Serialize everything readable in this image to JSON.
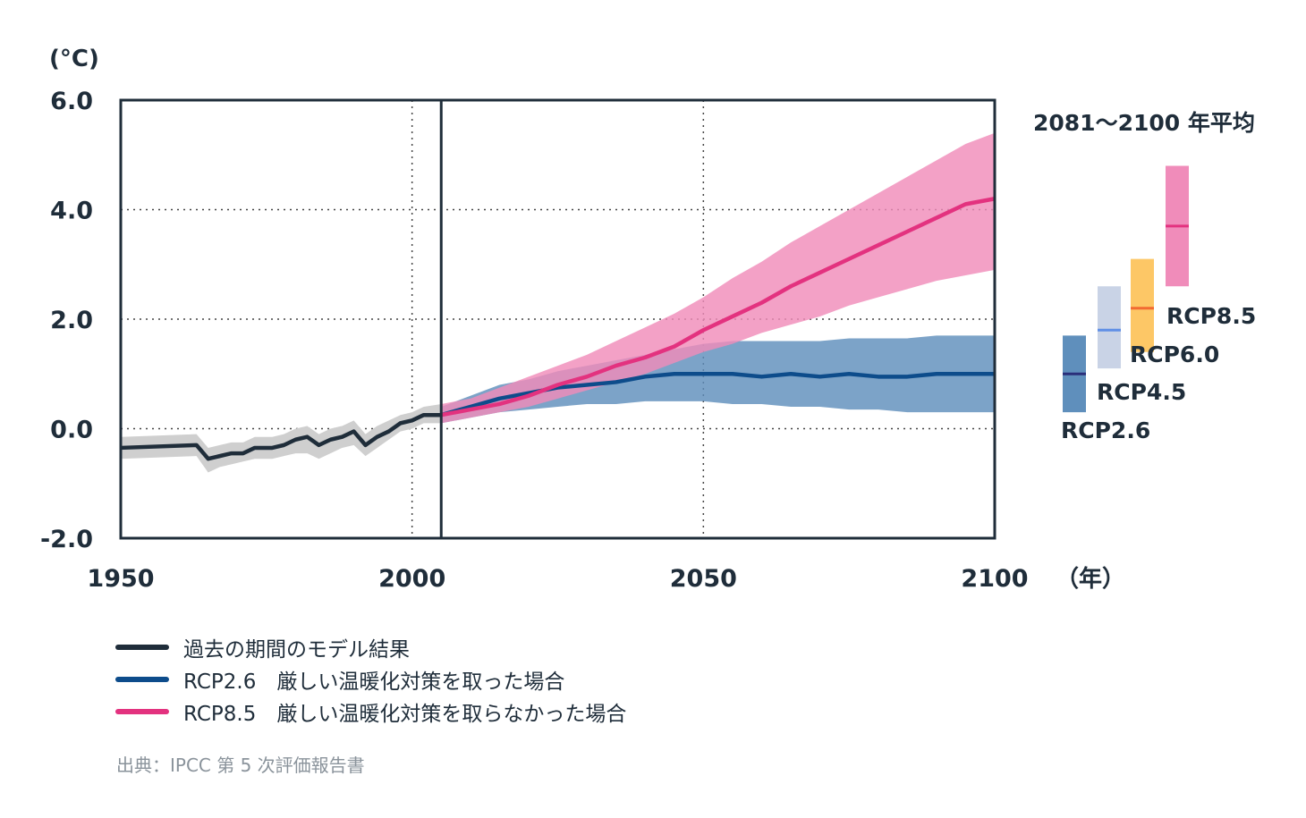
{
  "chart_data": {
    "type": "line",
    "ylabel": "(°C)",
    "xlabel": "（年）",
    "xlim": [
      1950,
      2100
    ],
    "ylim": [
      -2.0,
      6.0
    ],
    "x_ticks": [
      "1950",
      "2000",
      "2050",
      "2100"
    ],
    "y_ticks": [
      "6.0",
      "4.0",
      "2.0",
      "0.0",
      "-2.0"
    ],
    "grid": "dotted",
    "projection_start": 2005,
    "series": [
      {
        "name": "過去の期間のモデル結果",
        "color": "#1f2d3a",
        "band_color": "#cfcfcf",
        "x": [
          1950,
          1963,
          1965,
          1967,
          1969,
          1971,
          1973,
          1976,
          1978,
          1980,
          1982,
          1984,
          1986,
          1988,
          1990,
          1992,
          1994,
          1996,
          1998,
          2000,
          2002,
          2005
        ],
        "y": [
          -0.35,
          -0.3,
          -0.55,
          -0.5,
          -0.45,
          -0.45,
          -0.35,
          -0.35,
          -0.3,
          -0.2,
          -0.15,
          -0.3,
          -0.2,
          -0.15,
          -0.05,
          -0.3,
          -0.15,
          -0.05,
          0.1,
          0.15,
          0.25,
          0.25
        ],
        "band_low": [
          -0.55,
          -0.5,
          -0.8,
          -0.7,
          -0.65,
          -0.6,
          -0.55,
          -0.55,
          -0.5,
          -0.45,
          -0.45,
          -0.55,
          -0.45,
          -0.35,
          -0.3,
          -0.5,
          -0.35,
          -0.2,
          -0.05,
          0.0,
          0.1,
          0.1
        ],
        "band_high": [
          -0.15,
          -0.1,
          -0.35,
          -0.3,
          -0.25,
          -0.25,
          -0.15,
          -0.15,
          -0.1,
          0.0,
          0.05,
          -0.1,
          0.0,
          0.05,
          0.15,
          -0.1,
          0.05,
          0.15,
          0.25,
          0.3,
          0.4,
          0.45
        ]
      },
      {
        "name": "RCP2.6　厳しい温暖化対策を取った場合",
        "color": "#0d4c8b",
        "band_color": "#5f8fbc",
        "x": [
          2005,
          2010,
          2015,
          2020,
          2025,
          2030,
          2035,
          2040,
          2045,
          2050,
          2055,
          2060,
          2065,
          2070,
          2075,
          2080,
          2085,
          2090,
          2095,
          2100
        ],
        "y": [
          0.25,
          0.4,
          0.55,
          0.65,
          0.75,
          0.8,
          0.85,
          0.95,
          1.0,
          1.0,
          1.0,
          0.95,
          1.0,
          0.95,
          1.0,
          0.95,
          0.95,
          1.0,
          1.0,
          1.0
        ],
        "band_low": [
          0.1,
          0.2,
          0.3,
          0.35,
          0.4,
          0.45,
          0.45,
          0.5,
          0.5,
          0.5,
          0.45,
          0.45,
          0.4,
          0.4,
          0.35,
          0.35,
          0.3,
          0.3,
          0.3,
          0.3
        ],
        "band_high": [
          0.4,
          0.6,
          0.8,
          0.9,
          1.05,
          1.15,
          1.25,
          1.35,
          1.45,
          1.55,
          1.6,
          1.6,
          1.6,
          1.6,
          1.65,
          1.65,
          1.65,
          1.7,
          1.7,
          1.7
        ]
      },
      {
        "name": "RCP8.5　厳しい温暖化対策を取らなかった場合",
        "color": "#e3327f",
        "band_color": "#f08cba",
        "x": [
          2005,
          2010,
          2015,
          2020,
          2025,
          2030,
          2035,
          2040,
          2045,
          2050,
          2055,
          2060,
          2065,
          2070,
          2075,
          2080,
          2085,
          2090,
          2095,
          2100
        ],
        "y": [
          0.25,
          0.35,
          0.45,
          0.6,
          0.8,
          0.95,
          1.15,
          1.3,
          1.5,
          1.8,
          2.05,
          2.3,
          2.6,
          2.85,
          3.1,
          3.35,
          3.6,
          3.85,
          4.1,
          4.2
        ],
        "band_low": [
          0.1,
          0.2,
          0.3,
          0.4,
          0.55,
          0.7,
          0.85,
          1.0,
          1.2,
          1.4,
          1.55,
          1.75,
          1.9,
          2.05,
          2.25,
          2.4,
          2.55,
          2.7,
          2.8,
          2.9
        ],
        "band_high": [
          0.45,
          0.55,
          0.75,
          0.95,
          1.15,
          1.35,
          1.6,
          1.85,
          2.1,
          2.4,
          2.75,
          3.05,
          3.4,
          3.7,
          4.0,
          4.3,
          4.6,
          4.9,
          5.2,
          5.4
        ]
      }
    ]
  },
  "period_average": {
    "title": "2081〜2100 年平均",
    "bars": [
      {
        "name": "RCP2.6",
        "low": 0.3,
        "high": 1.7,
        "mean": 1.0,
        "color": "#5f8fbc",
        "mean_color": "#2a2f7a"
      },
      {
        "name": "RCP4.5",
        "low": 1.1,
        "high": 2.6,
        "mean": 1.8,
        "color": "#c9d3e6",
        "mean_color": "#5f8fe6"
      },
      {
        "name": "RCP6.0",
        "low": 1.4,
        "high": 3.1,
        "mean": 2.2,
        "color": "#fdc766",
        "mean_color": "#f26a32"
      },
      {
        "name": "RCP8.5",
        "low": 2.6,
        "high": 4.8,
        "mean": 3.7,
        "color": "#f08cba",
        "mean_color": "#e3327f"
      }
    ]
  },
  "legend": [
    {
      "label": "過去の期間のモデル結果",
      "color": "#1f2d3a"
    },
    {
      "label": "RCP2.6　厳しい温暖化対策を取った場合",
      "color": "#0d4c8b"
    },
    {
      "label": "RCP8.5　厳しい温暖化対策を取らなかった場合",
      "color": "#e3327f"
    }
  ],
  "source": "出典：IPCC 第 5 次評価報告書"
}
